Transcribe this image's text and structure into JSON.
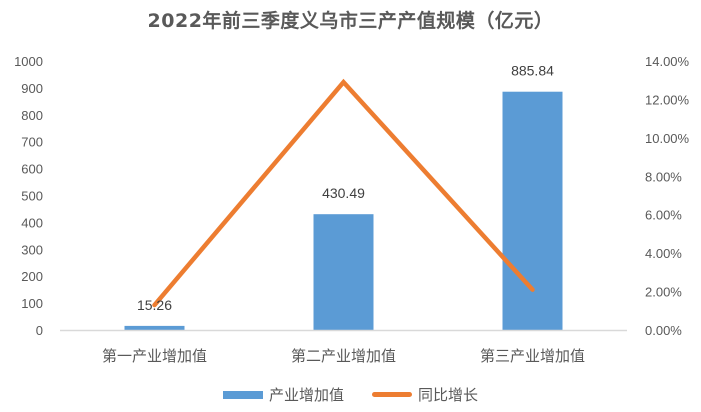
{
  "title": "2022年前三季度义乌市三产产值规模（亿元）",
  "colors": {
    "bar": "#5b9bd5",
    "line": "#ed7d31",
    "axis": "#d9d9d9",
    "text": "#595959"
  },
  "chart_data": {
    "type": "bar+line",
    "title": "2022年前三季度义乌市三产产值规模（亿元）",
    "categories": [
      "第一产业增加值",
      "第二产业增加值",
      "第三产业增加值"
    ],
    "series": [
      {
        "name": "产业增加值",
        "type": "bar",
        "axis": "left",
        "values": [
          15.26,
          430.49,
          885.84
        ],
        "data_labels": [
          "15.26",
          "430.49",
          "885.84"
        ]
      },
      {
        "name": "同比增长",
        "type": "line",
        "axis": "right",
        "values": [
          1.3,
          12.9,
          2.1
        ],
        "unit": "%"
      }
    ],
    "y_left": {
      "ylim": [
        0,
        1000
      ],
      "ticks": [
        "0",
        "100",
        "200",
        "300",
        "400",
        "500",
        "600",
        "700",
        "800",
        "900",
        "1000"
      ]
    },
    "y_right": {
      "ylim": [
        0,
        14
      ],
      "ticks": [
        "0.00%",
        "2.00%",
        "4.00%",
        "6.00%",
        "8.00%",
        "10.00%",
        "12.00%",
        "14.00%"
      ]
    },
    "grid": false,
    "legend_position": "bottom"
  },
  "legend": {
    "bar_label": "产业增加值",
    "line_label": "同比增长"
  }
}
